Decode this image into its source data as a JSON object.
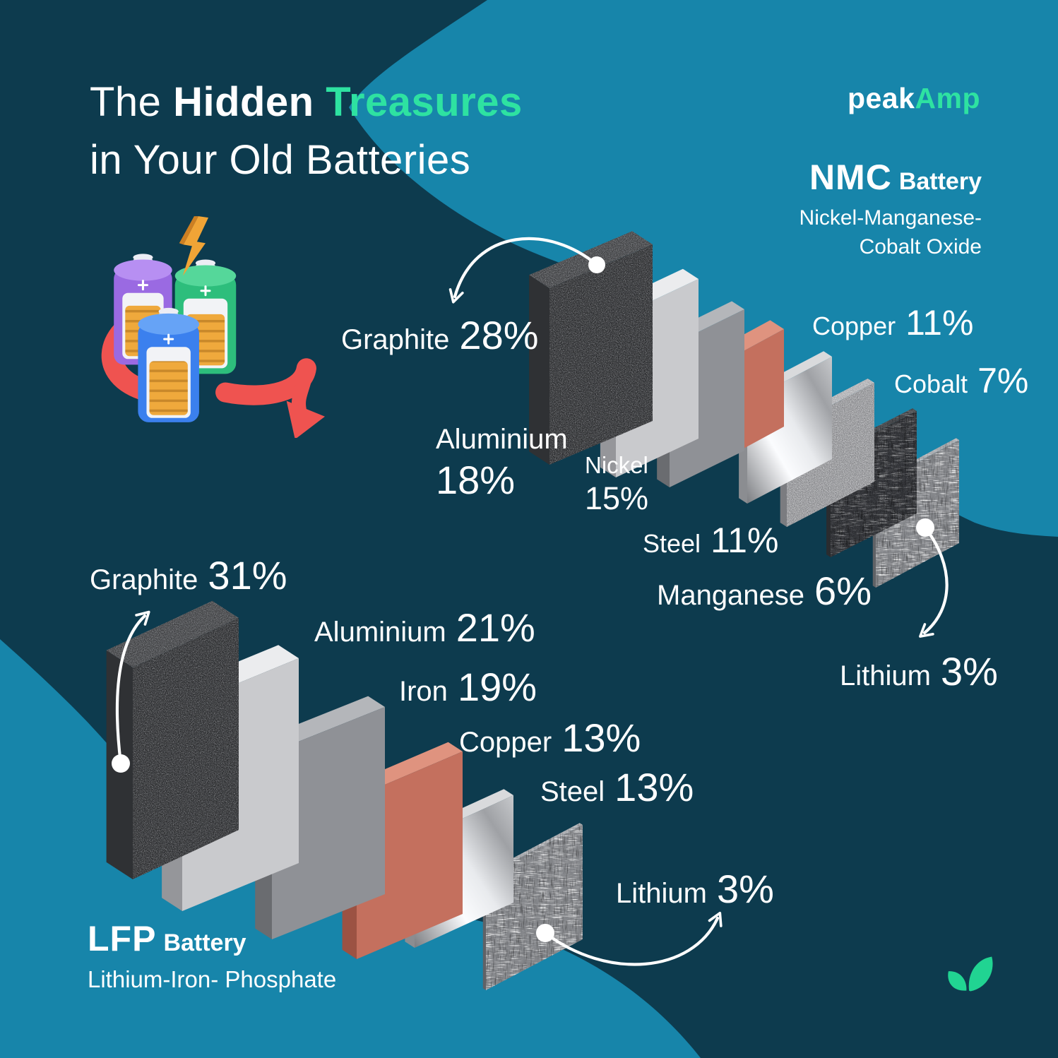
{
  "palette": {
    "bg_dark": "#0d3b4e",
    "bg_light": "#1785aa",
    "accent_green": "#2ee2a1",
    "leaf_green": "#21d492",
    "arrow_red": "#ef5350",
    "text_white": "#ffffff"
  },
  "title": {
    "word1": "The ",
    "word2": "Hidden",
    "word3": " Treasures",
    "line2": "in Your Old Batteries"
  },
  "logo": {
    "part1": "peak",
    "part2": "Amp"
  },
  "nmc_heading": {
    "abbr": "NMC",
    "word": "Battery",
    "sub1": "Nickel-Manganese-",
    "sub2": "Cobalt Oxide"
  },
  "lfp_heading": {
    "abbr": "LFP",
    "word": "Battery",
    "sub": "Lithium-Iron- Phosphate"
  },
  "nmc": {
    "materials": [
      {
        "name": "Graphite",
        "pct": "28%",
        "texture": "grain",
        "color": {
          "front": "#4a4c50",
          "top": "#606266",
          "side": "#2f3134"
        }
      },
      {
        "name": "Aluminium",
        "pct": "18%",
        "texture": "none",
        "color": {
          "front": "#c9cacd",
          "top": "#ebecee",
          "side": "#95969a"
        }
      },
      {
        "name": "Nickel",
        "pct": "15%",
        "texture": "none",
        "color": {
          "front": "#8f9196",
          "top": "#b4b6ba",
          "side": "#6a6c70"
        }
      },
      {
        "name": "Copper",
        "pct": "11%",
        "texture": "none",
        "color": {
          "front": "#c4705e",
          "top": "#df937f",
          "side": "#9c5243"
        }
      },
      {
        "name": "Steel",
        "pct": "11%",
        "texture": "steel",
        "color": {
          "front": "#b9bbbe",
          "top": "#d9dadc",
          "side": "#8b8d91"
        }
      },
      {
        "name": "Cobalt",
        "pct": "7%",
        "texture": "speckle",
        "color": {
          "front": "#a2a3a7",
          "top": "#c2c3c7",
          "side": "#7b7c80"
        }
      },
      {
        "name": "Manganese",
        "pct": "6%",
        "texture": "mesh",
        "color": {
          "front": "#404247",
          "top": "#55575b",
          "side": "#2a2c2f"
        }
      },
      {
        "name": "Lithium",
        "pct": "3%",
        "texture": "mesh-light",
        "color": {
          "front": "#85878b",
          "top": "#aaacb0",
          "side": "#606266"
        }
      }
    ]
  },
  "lfp": {
    "materials": [
      {
        "name": "Graphite",
        "pct": "31%",
        "texture": "grain",
        "color": {
          "front": "#4a4c50",
          "top": "#606266",
          "side": "#2f3134"
        }
      },
      {
        "name": "Aluminium",
        "pct": "21%",
        "texture": "none",
        "color": {
          "front": "#c9cacd",
          "top": "#ebecee",
          "side": "#95969a"
        }
      },
      {
        "name": "Iron",
        "pct": "19%",
        "texture": "none",
        "color": {
          "front": "#8f9196",
          "top": "#b4b6ba",
          "side": "#6a6c70"
        }
      },
      {
        "name": "Copper",
        "pct": "13%",
        "texture": "none",
        "color": {
          "front": "#c4705e",
          "top": "#df937f",
          "side": "#9c5243"
        }
      },
      {
        "name": "Steel",
        "pct": "13%",
        "texture": "steel",
        "color": {
          "front": "#b9bbbe",
          "top": "#d9dadc",
          "side": "#8b8d91"
        }
      },
      {
        "name": "Lithium",
        "pct": "3%",
        "texture": "mesh-light",
        "color": {
          "front": "#85878b",
          "top": "#aaacb0",
          "side": "#606266"
        }
      }
    ]
  },
  "icons": {
    "leaf": "seedling-leaves-icon",
    "recycle_arrow": "red-recycle-arrow",
    "lightning": "lightning-bolt",
    "batteries": "three-batteries-with-coins"
  },
  "chart_data": [
    {
      "type": "bar",
      "title": "NMC Battery (Nickel-Manganese-Cobalt Oxide) material composition",
      "unit": "%",
      "categories": [
        "Graphite",
        "Aluminium",
        "Nickel",
        "Copper",
        "Steel",
        "Cobalt",
        "Manganese",
        "Lithium"
      ],
      "values": [
        28,
        18,
        15,
        11,
        11,
        7,
        6,
        3
      ]
    },
    {
      "type": "bar",
      "title": "LFP Battery (Lithium-Iron-Phosphate) material composition",
      "unit": "%",
      "categories": [
        "Graphite",
        "Aluminium",
        "Iron",
        "Copper",
        "Steel",
        "Lithium"
      ],
      "values": [
        31,
        21,
        19,
        13,
        13,
        3
      ]
    }
  ]
}
